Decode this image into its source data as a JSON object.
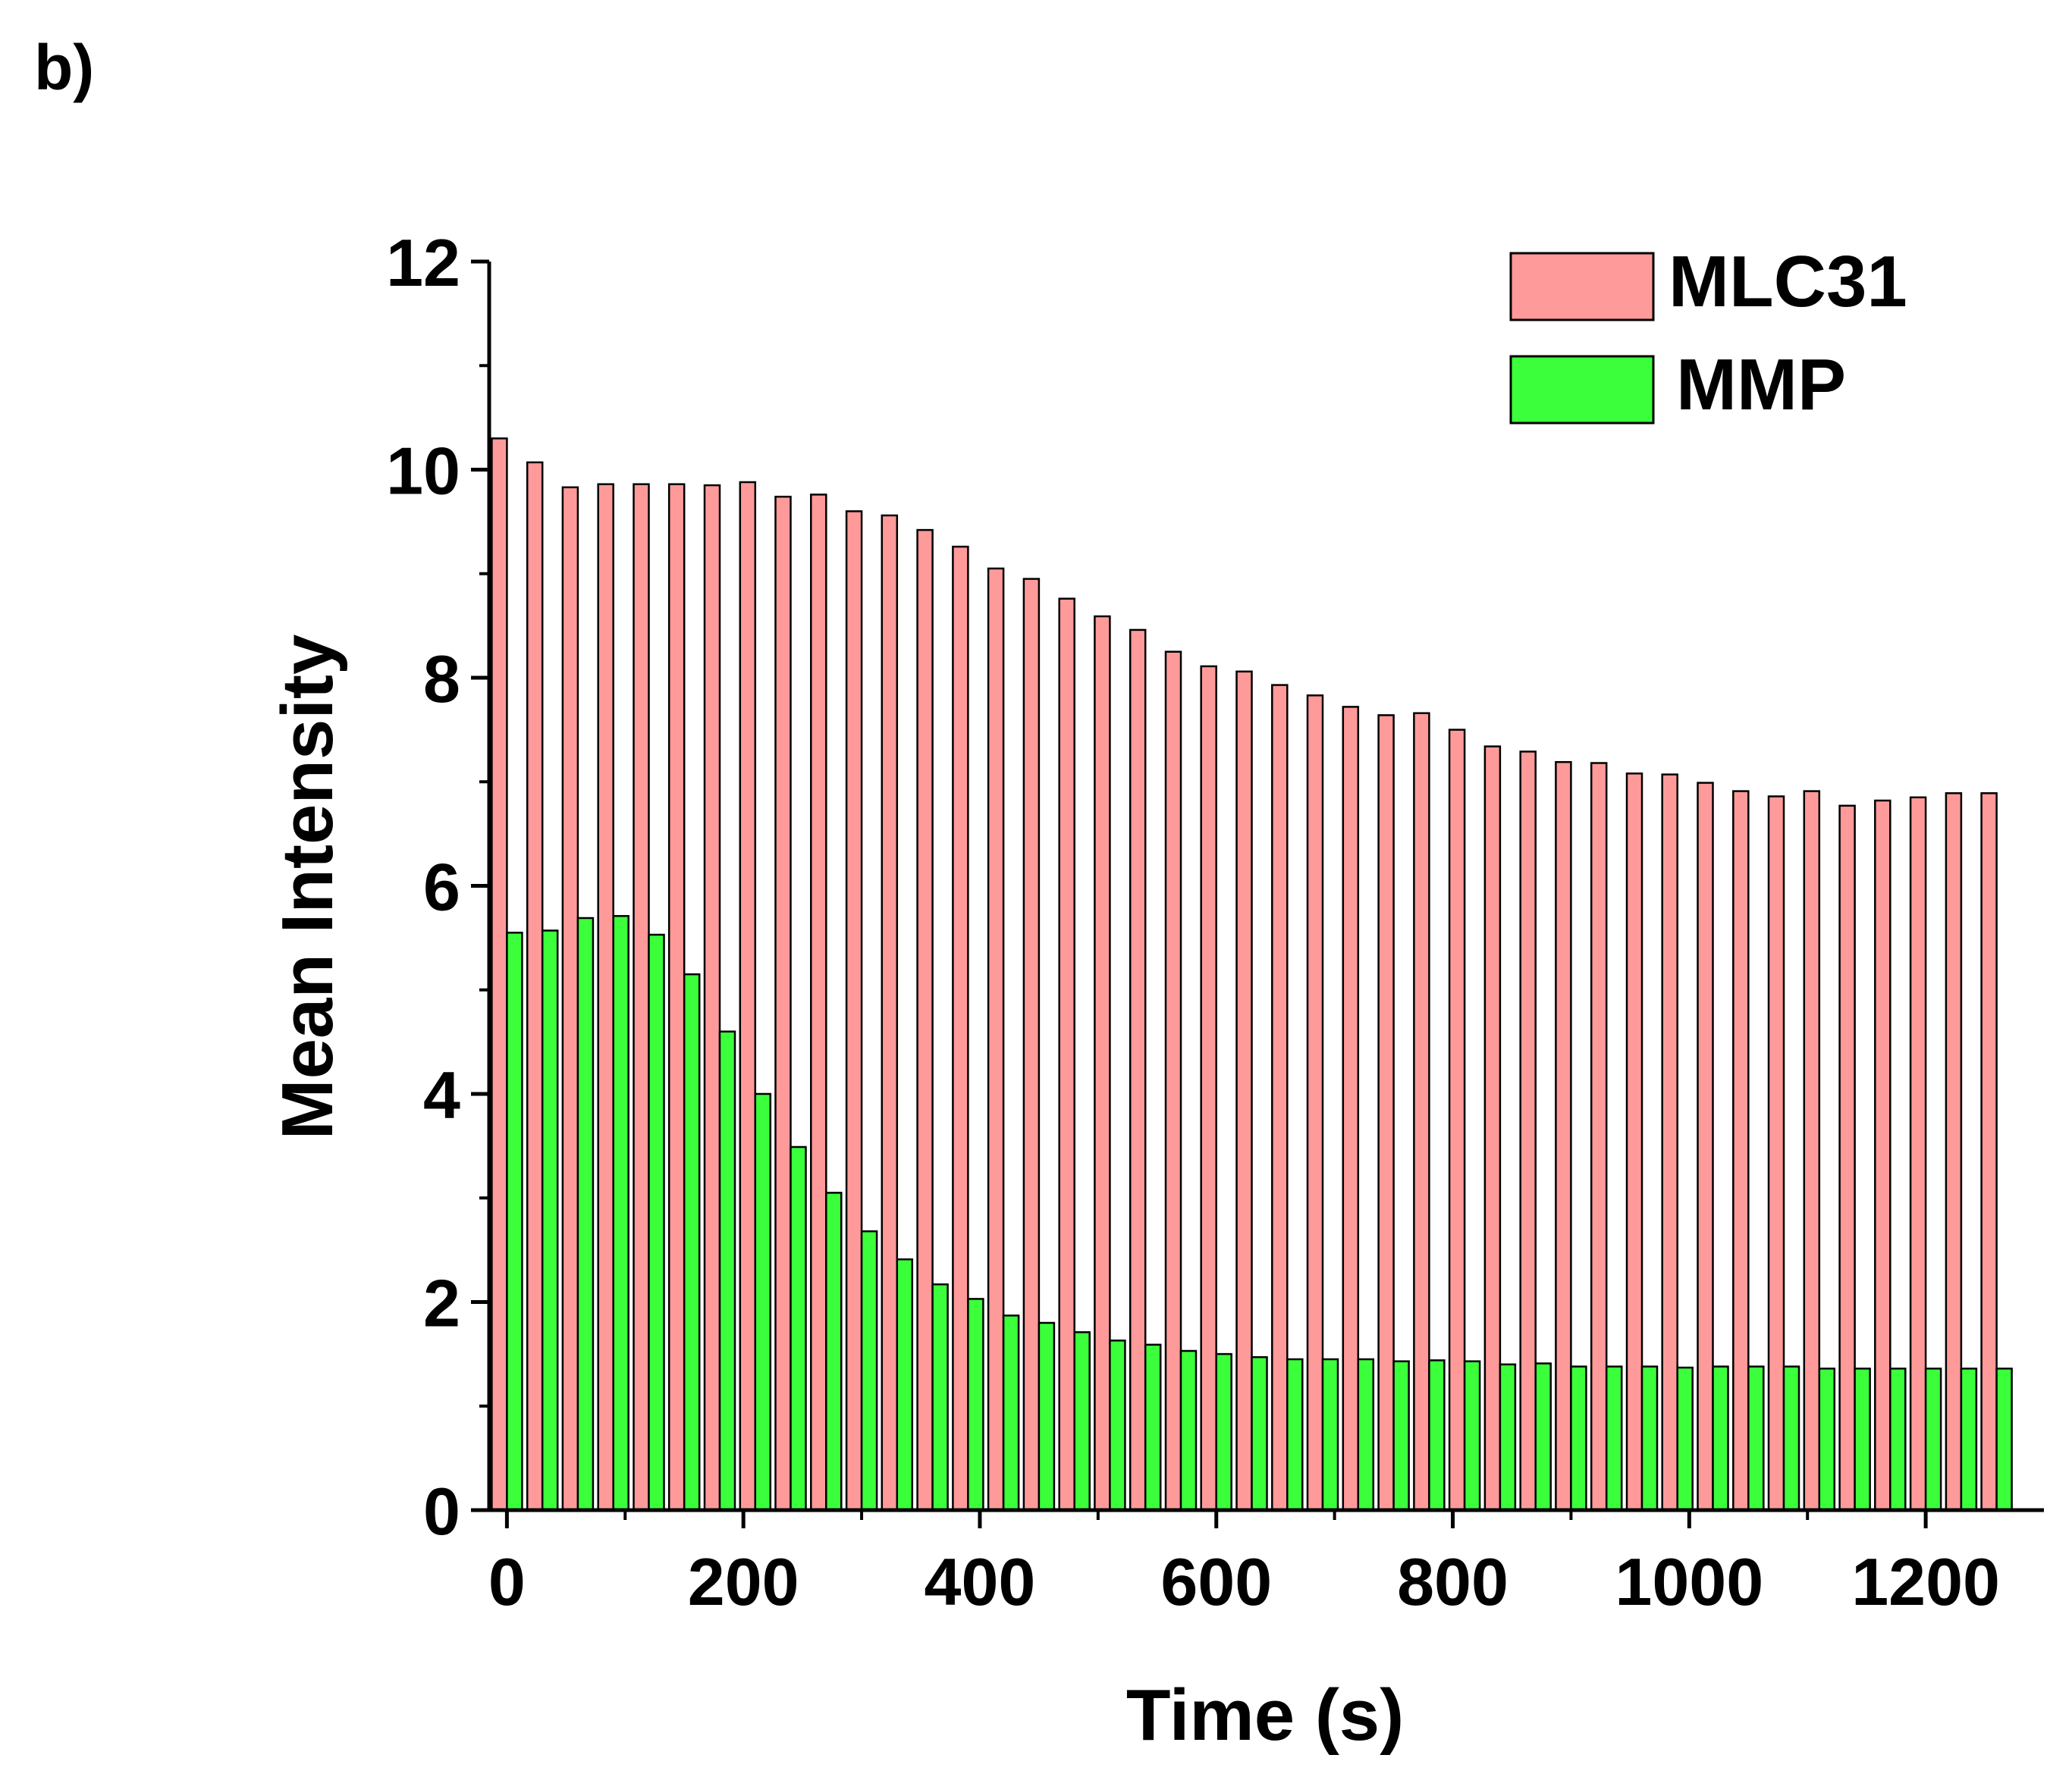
{
  "panel_label": "b)",
  "colors": {
    "mlc31_fill": "#ff9a9a",
    "mmp_fill": "#3bff3b",
    "outline": "#000000"
  },
  "chart_data": {
    "type": "bar",
    "title": "",
    "xlabel": "Time (s)",
    "ylabel": "Mean Intensity",
    "xlim": [
      -15,
      1300
    ],
    "ylim": [
      0,
      12
    ],
    "xticks": [
      0,
      200,
      400,
      600,
      800,
      1000,
      1200
    ],
    "xtick_labels": [
      "0",
      "200",
      "400",
      "600",
      "800",
      "1000",
      "1200"
    ],
    "yticks": [
      0,
      2,
      4,
      6,
      8,
      10,
      12
    ],
    "ytick_labels": [
      "0",
      "2",
      "4",
      "6",
      "8",
      "10",
      "12"
    ],
    "legend_position": "top-right",
    "categories": [
      0,
      30,
      60,
      90,
      120,
      150,
      180,
      210,
      240,
      270,
      300,
      330,
      360,
      390,
      420,
      450,
      480,
      510,
      540,
      570,
      600,
      630,
      660,
      690,
      720,
      750,
      780,
      810,
      840,
      870,
      900,
      930,
      960,
      990,
      1020,
      1050,
      1080,
      1110,
      1140,
      1170,
      1200,
      1230,
      1260
    ],
    "series": [
      {
        "name": "MLC31",
        "values": [
          10.3,
          10.07,
          9.83,
          9.86,
          9.86,
          9.86,
          9.85,
          9.88,
          9.74,
          9.76,
          9.6,
          9.56,
          9.42,
          9.26,
          9.05,
          8.95,
          8.76,
          8.59,
          8.46,
          8.25,
          8.11,
          8.06,
          7.93,
          7.83,
          7.72,
          7.64,
          7.66,
          7.5,
          7.34,
          7.29,
          7.19,
          7.18,
          7.08,
          7.07,
          6.99,
          6.91,
          6.86,
          6.91,
          6.77,
          6.82,
          6.85,
          6.89,
          6.89
        ]
      },
      {
        "name": "MMP",
        "values": [
          5.55,
          5.57,
          5.69,
          5.71,
          5.53,
          5.15,
          4.6,
          4.0,
          3.49,
          3.05,
          2.68,
          2.41,
          2.17,
          2.03,
          1.87,
          1.8,
          1.71,
          1.63,
          1.59,
          1.53,
          1.5,
          1.47,
          1.45,
          1.45,
          1.45,
          1.43,
          1.44,
          1.43,
          1.4,
          1.41,
          1.38,
          1.38,
          1.38,
          1.37,
          1.38,
          1.38,
          1.38,
          1.36,
          1.36,
          1.36,
          1.36,
          1.36,
          1.36
        ]
      }
    ]
  }
}
